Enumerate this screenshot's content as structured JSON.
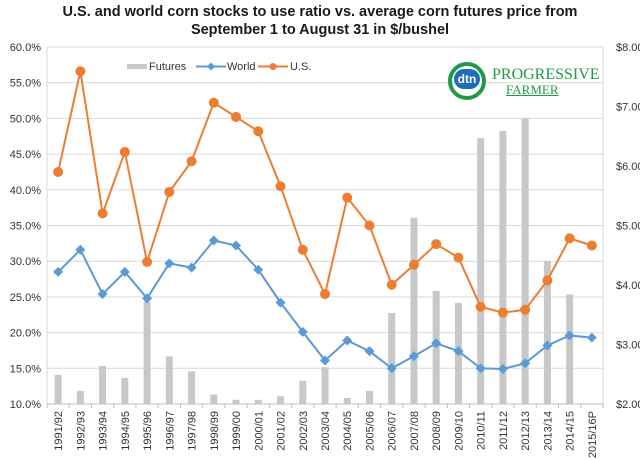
{
  "chart_data": {
    "type": "bar+line",
    "title_lines": [
      "U.S. and world corn stocks to use ratio vs. average corn futures price from",
      "September 1 to August 31 in $/bushel"
    ],
    "categories": [
      "1991/92",
      "1992/93",
      "1993/94",
      "1994/95",
      "1995/96",
      "1996/97",
      "1997/98",
      "1998/99",
      "1999/00",
      "2000/01",
      "2001/02",
      "2002/03",
      "2003/04",
      "2004/05",
      "2005/06",
      "2006/07",
      "2007/08",
      "2008/09",
      "2009/10",
      "2010/11",
      "2011/12",
      "2012/13",
      "2013/14",
      "2014/15",
      "2015/16P"
    ],
    "series": [
      {
        "name": "Futures",
        "type": "bar",
        "axis": "right",
        "color": "#c8c8c8",
        "values": [
          2.49,
          2.22,
          2.64,
          2.44,
          3.72,
          2.8,
          2.55,
          2.16,
          2.07,
          2.07,
          2.13,
          2.39,
          2.62,
          2.1,
          2.22,
          3.53,
          5.13,
          3.9,
          3.7,
          6.47,
          6.59,
          6.8,
          4.4,
          3.84,
          null
        ]
      },
      {
        "name": "World",
        "type": "line",
        "axis": "left",
        "marker": "diamond",
        "color": "#5b9bd5",
        "values": [
          28.5,
          31.6,
          25.4,
          28.5,
          24.8,
          29.7,
          29.1,
          32.9,
          32.2,
          28.8,
          24.2,
          20.1,
          16.1,
          18.9,
          17.4,
          15.0,
          16.7,
          18.5,
          17.4,
          15.0,
          14.9,
          15.7,
          18.2,
          19.6,
          19.3
        ]
      },
      {
        "name": "U.S.",
        "type": "line",
        "axis": "left",
        "marker": "circle",
        "color": "#ed7d31",
        "values": [
          42.5,
          56.6,
          36.7,
          45.3,
          29.9,
          39.7,
          44.0,
          52.2,
          50.2,
          48.2,
          40.5,
          31.6,
          25.4,
          38.9,
          35.0,
          26.7,
          29.5,
          32.4,
          30.5,
          23.6,
          22.8,
          23.2,
          27.3,
          33.2,
          32.2
        ]
      }
    ],
    "left_axis": {
      "min": 10,
      "max": 60,
      "step": 5,
      "ticks": [
        "10.0%",
        "15.0%",
        "20.0%",
        "25.0%",
        "30.0%",
        "35.0%",
        "40.0%",
        "45.0%",
        "50.0%",
        "55.0%",
        "60.0%"
      ]
    },
    "right_axis": {
      "min": 2,
      "max": 8,
      "step": 1,
      "ticks": [
        "$2.00",
        "$3.00",
        "$4.00",
        "$5.00",
        "$6.00",
        "$7.00",
        "$8.00"
      ]
    },
    "grid": true,
    "legend": {
      "placement": "top-left",
      "entries": [
        "Futures",
        "World",
        "U.S."
      ]
    }
  },
  "logo": {
    "badge_text": "dtn",
    "line1": "PROGRESSIVE",
    "line2": "FARMER"
  }
}
